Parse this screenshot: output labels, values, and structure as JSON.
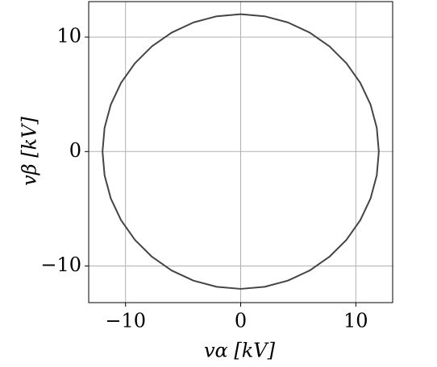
{
  "chart_data": {
    "type": "line",
    "x_label": "vα [kV]",
    "y_label": "vβ [kV]",
    "x": [
      12,
      11.82,
      11.28,
      10.39,
      9.19,
      7.71,
      6,
      4.1,
      2.08,
      0,
      -2.08,
      -4.1,
      -6,
      -7.71,
      -9.19,
      -10.39,
      -11.28,
      -11.82,
      -12,
      -11.82,
      -11.28,
      -10.39,
      -9.19,
      -7.71,
      -6,
      -4.1,
      -2.08,
      0,
      2.08,
      4.1,
      6,
      7.71,
      9.19,
      10.39,
      11.28,
      11.82,
      12
    ],
    "values": [
      0,
      2.08,
      4.1,
      6,
      7.71,
      9.19,
      10.39,
      11.28,
      11.82,
      12,
      11.82,
      11.28,
      10.39,
      9.19,
      7.71,
      6,
      4.1,
      2.08,
      0,
      -2.08,
      -4.1,
      -6,
      -7.71,
      -9.19,
      -10.39,
      -11.28,
      -11.82,
      -12,
      -11.82,
      -11.28,
      -10.39,
      -9.19,
      -7.71,
      -6,
      -4.1,
      -2.08,
      0
    ],
    "color": "#444444",
    "xlim": [
      -13.2,
      13.2
    ],
    "ylim": [
      -13.2,
      13.1
    ],
    "xticks": [
      {
        "value": -10,
        "label": "−10"
      },
      0,
      10
    ],
    "yticks": [
      {
        "value": -10,
        "label": "−10"
      },
      0,
      10
    ],
    "grid": true
  }
}
